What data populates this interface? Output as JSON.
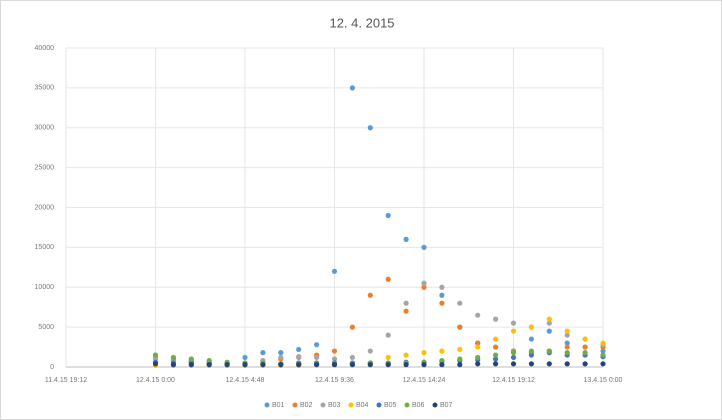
{
  "chart_data": {
    "type": "scatter",
    "title": "12. 4. 2015",
    "x": [
      42106.0,
      42106.04,
      42106.08,
      42106.12,
      42106.16,
      42106.2,
      42106.24,
      42106.28,
      42106.32,
      42106.36,
      42106.4,
      42106.44,
      42106.48,
      42106.52,
      42106.56,
      42106.6,
      42106.64,
      42106.68,
      42106.72,
      42106.76,
      42106.8,
      42106.84,
      42106.88,
      42106.92,
      42106.96,
      42107.0
    ],
    "series": [
      {
        "name": "B01",
        "color": "#5b9bd5",
        "values": [
          1500,
          1000,
          800,
          600,
          500,
          1200,
          1800,
          1800,
          2200,
          2800,
          12000,
          35000,
          30000,
          19000,
          16000,
          15000,
          9000,
          5000,
          3000,
          2500,
          2000,
          3500,
          4500,
          3000,
          2500,
          2000
        ]
      },
      {
        "name": "B02",
        "color": "#ed7d31",
        "values": [
          1200,
          900,
          700,
          500,
          400,
          500,
          800,
          1000,
          1200,
          1500,
          2000,
          5000,
          9000,
          11000,
          7000,
          10000,
          8000,
          5000,
          3000,
          2500,
          2000,
          1800,
          2000,
          2500,
          2500,
          2500
        ]
      },
      {
        "name": "B03",
        "color": "#a5a5a5",
        "values": [
          1000,
          800,
          600,
          500,
          400,
          500,
          800,
          1200,
          1300,
          1200,
          1000,
          1200,
          2000,
          4000,
          8000,
          10500,
          10000,
          8000,
          6500,
          6000,
          5500,
          5000,
          5500,
          4000,
          3500,
          2800
        ]
      },
      {
        "name": "B04",
        "color": "#ffc000",
        "values": [
          200,
          200,
          200,
          200,
          200,
          200,
          200,
          200,
          200,
          300,
          300,
          400,
          500,
          1200,
          1500,
          1800,
          2000,
          2200,
          2500,
          3500,
          4500,
          5000,
          6000,
          4500,
          3500,
          3000
        ]
      },
      {
        "name": "B05",
        "color": "#4472c4",
        "values": [
          600,
          500,
          500,
          400,
          400,
          400,
          400,
          400,
          500,
          500,
          500,
          500,
          500,
          500,
          600,
          600,
          700,
          800,
          900,
          1000,
          1200,
          1500,
          1800,
          1500,
          1500,
          1300
        ]
      },
      {
        "name": "B06",
        "color": "#70ad47",
        "values": [
          1500,
          1200,
          1000,
          800,
          600,
          500,
          500,
          400,
          400,
          400,
          400,
          400,
          500,
          500,
          500,
          600,
          800,
          1000,
          1200,
          1500,
          1800,
          2000,
          2000,
          1800,
          1800,
          1500
        ]
      },
      {
        "name": "B07",
        "color": "#264478",
        "values": [
          400,
          300,
          300,
          300,
          300,
          300,
          300,
          300,
          300,
          300,
          300,
          300,
          300,
          300,
          300,
          300,
          300,
          300,
          400,
          400,
          400,
          400,
          400,
          400,
          400,
          400
        ]
      }
    ],
    "xlim": [
      42105.8,
      42107.0
    ],
    "xticks": [
      {
        "value": 42105.8,
        "label": "11.4.15 19:12"
      },
      {
        "value": 42106.0,
        "label": "12.4.15 0:00"
      },
      {
        "value": 42106.2,
        "label": "12.4.15 4:48"
      },
      {
        "value": 42106.4,
        "label": "12.4.15 9:36"
      },
      {
        "value": 42106.6,
        "label": "12.4.15 14:24"
      },
      {
        "value": 42106.8,
        "label": "12.4.15 19:12"
      },
      {
        "value": 42107.0,
        "label": "13.4.15 0:00"
      }
    ],
    "ylim": [
      0,
      40000
    ],
    "yticks": [
      0,
      5000,
      10000,
      15000,
      20000,
      25000,
      30000,
      35000,
      40000
    ],
    "grid": true,
    "legend": "bottom"
  }
}
